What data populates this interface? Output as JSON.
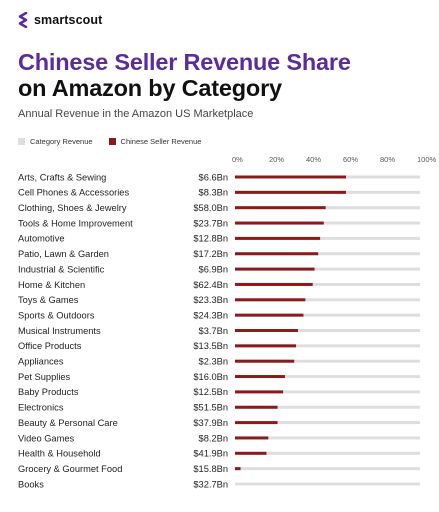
{
  "brand": {
    "name": "smartscout"
  },
  "title_line1": "Chinese Seller Revenue Share",
  "title_line2": "on Amazon by Category",
  "subtitle": "Annual Revenue in the Amazon US Marketplace",
  "colors": {
    "category": "#dedede",
    "chinese": "#8b1a1a",
    "title_accent": "#5b2d9a"
  },
  "chart_data": {
    "type": "bar",
    "orientation": "horizontal",
    "legend": [
      "Category Revenue",
      "Chinese Seller Revenue"
    ],
    "x_ticks": [
      "0%",
      "20%",
      "40%",
      "60%",
      "80%",
      "100%"
    ],
    "xlim": [
      0,
      100
    ],
    "categories": [
      "Arts, Crafts & Sewing",
      "Cell Phones & Accessories",
      "Clothing, Shoes & Jewelry",
      "Tools & Home Improvement",
      "Automotive",
      "Patio, Lawn & Garden",
      "Industrial & Scientific",
      "Home & Kitchen",
      "Toys & Games",
      "Sports & Outdoors",
      "Musical Instruments",
      "Office Products",
      "Appliances",
      "Pet Supplies",
      "Baby Products",
      "Electronics",
      "Beauty & Personal Care",
      "Video Games",
      "Health & Household",
      "Grocery & Gourmet Food",
      "Books"
    ],
    "category_revenue": [
      "$6.6Bn",
      "$8.3Bn",
      "$58.0Bn",
      "$23.7Bn",
      "$12.8Bn",
      "$17.2Bn",
      "$6.9Bn",
      "$62.4Bn",
      "$23.3Bn",
      "$24.3Bn",
      "$3.7Bn",
      "$13.5Bn",
      "$2.3Bn",
      "$16.0Bn",
      "$12.5Bn",
      "$51.5Bn",
      "$37.9Bn",
      "$8.2Bn",
      "$41.9Bn",
      "$15.8Bn",
      "$32.7Bn"
    ],
    "series": [
      {
        "name": "Category Revenue",
        "values": [
          100,
          100,
          100,
          100,
          100,
          100,
          100,
          100,
          100,
          100,
          100,
          100,
          100,
          100,
          100,
          100,
          100,
          100,
          100,
          100,
          100
        ]
      },
      {
        "name": "Chinese Seller Revenue",
        "values": [
          60,
          60,
          49,
          48,
          46,
          45,
          43,
          42,
          38,
          37,
          34,
          33,
          32,
          27,
          26,
          23,
          23,
          18,
          17,
          3,
          0
        ]
      }
    ]
  }
}
